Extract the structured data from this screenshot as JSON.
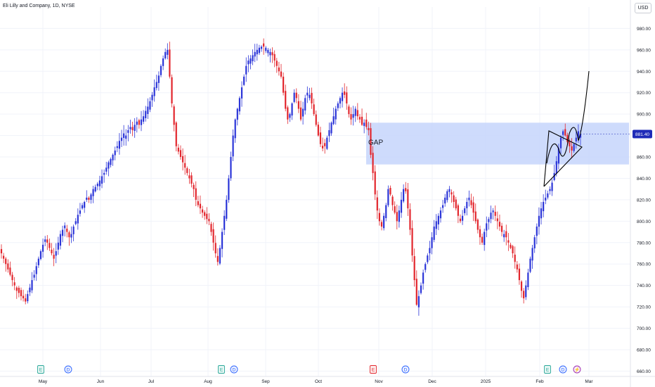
{
  "header": {
    "symbol_title": "Eli Lilly and Company, 1D, NYSE",
    "currency": "USD"
  },
  "annotations": {
    "gap_label": "GAP"
  },
  "colors": {
    "up": "#2b35d8",
    "down": "#e2262d",
    "zone": "#c5d5fb",
    "price_tag": "#1f2bb8"
  },
  "chart_data": {
    "type": "candlestick",
    "title": "",
    "ylim": [
      657,
      1000
    ],
    "y_ticks": [
      "660.00",
      "680.00",
      "700.00",
      "720.00",
      "740.00",
      "760.00",
      "780.00",
      "800.00",
      "820.00",
      "840.00",
      "860.00",
      "880.00",
      "900.00",
      "920.00",
      "940.00",
      "960.00",
      "980.00"
    ],
    "x_ticks": [
      "May",
      "Jun",
      "Jul",
      "Aug",
      "Sep",
      "Oct",
      "Nov",
      "Dec",
      "2025",
      "Feb",
      "Mar"
    ],
    "last_price": "881.40",
    "gap_zone": {
      "low": 853,
      "high": 892,
      "from": "late Oct",
      "to": "right edge"
    },
    "events": [
      {
        "label": "E",
        "at": "May",
        "kind": "earnings"
      },
      {
        "label": "D",
        "at": "May",
        "kind": "dividend"
      },
      {
        "label": "E",
        "at": "Aug",
        "kind": "earnings"
      },
      {
        "label": "D",
        "at": "Aug",
        "kind": "dividend"
      },
      {
        "label": "E",
        "at": "Oct/Nov",
        "kind": "earnings-miss"
      },
      {
        "label": "D",
        "at": "Nov",
        "kind": "dividend"
      },
      {
        "label": "E",
        "at": "Feb",
        "kind": "earnings"
      },
      {
        "label": "D",
        "at": "Feb",
        "kind": "dividend"
      },
      {
        "label": "⚡",
        "at": "Feb/Mar",
        "kind": "split"
      }
    ],
    "ohlc_close_path": [
      770,
      765,
      760,
      755,
      750,
      745,
      740,
      735,
      733,
      730,
      728,
      725,
      732,
      738,
      745,
      750,
      758,
      765,
      772,
      778,
      783,
      780,
      775,
      770,
      765,
      772,
      780,
      788,
      792,
      796,
      790,
      785,
      788,
      795,
      800,
      806,
      810,
      815,
      818,
      822,
      820,
      825,
      830,
      832,
      835,
      838,
      842,
      845,
      850,
      855,
      858,
      862,
      866,
      870,
      875,
      878,
      882,
      880,
      885,
      888,
      885,
      890,
      893,
      890,
      895,
      898,
      903,
      907,
      912,
      918,
      925,
      930,
      936,
      945,
      952,
      958,
      960,
      935,
      910,
      890,
      870,
      865,
      860,
      855,
      850,
      845,
      840,
      835,
      830,
      820,
      815,
      812,
      808,
      805,
      802,
      800,
      790,
      780,
      770,
      762,
      775,
      790,
      805,
      820,
      840,
      860,
      880,
      895,
      905,
      915,
      925,
      935,
      945,
      950,
      952,
      955,
      958,
      960,
      962,
      963,
      963,
      962,
      960,
      958,
      955,
      950,
      945,
      940,
      935,
      920,
      905,
      895,
      900,
      910,
      920,
      915,
      905,
      895,
      905,
      915,
      920,
      918,
      910,
      900,
      890,
      880,
      872,
      868,
      870,
      878,
      885,
      892,
      898,
      905,
      910,
      915,
      920,
      918,
      910,
      900,
      895,
      900,
      905,
      898,
      895,
      890,
      892,
      888,
      885,
      862,
      845,
      825,
      810,
      800,
      795,
      805,
      815,
      830,
      825,
      815,
      808,
      800,
      810,
      820,
      830,
      828,
      812,
      792,
      768,
      745,
      722,
      730,
      740,
      752,
      760,
      768,
      775,
      785,
      795,
      800,
      805,
      810,
      815,
      822,
      828,
      830,
      825,
      818,
      812,
      805,
      800,
      805,
      812,
      818,
      822,
      815,
      808,
      800,
      792,
      785,
      780,
      790,
      798,
      802,
      808,
      810,
      805,
      800,
      795,
      790,
      788,
      785,
      780,
      775,
      770,
      762,
      755,
      745,
      735,
      728,
      740,
      752,
      765,
      775,
      785,
      795,
      805,
      812,
      818,
      822,
      826,
      830,
      836,
      845,
      856,
      868,
      878,
      884,
      880,
      874,
      870,
      866,
      872,
      878,
      884,
      881
    ]
  }
}
